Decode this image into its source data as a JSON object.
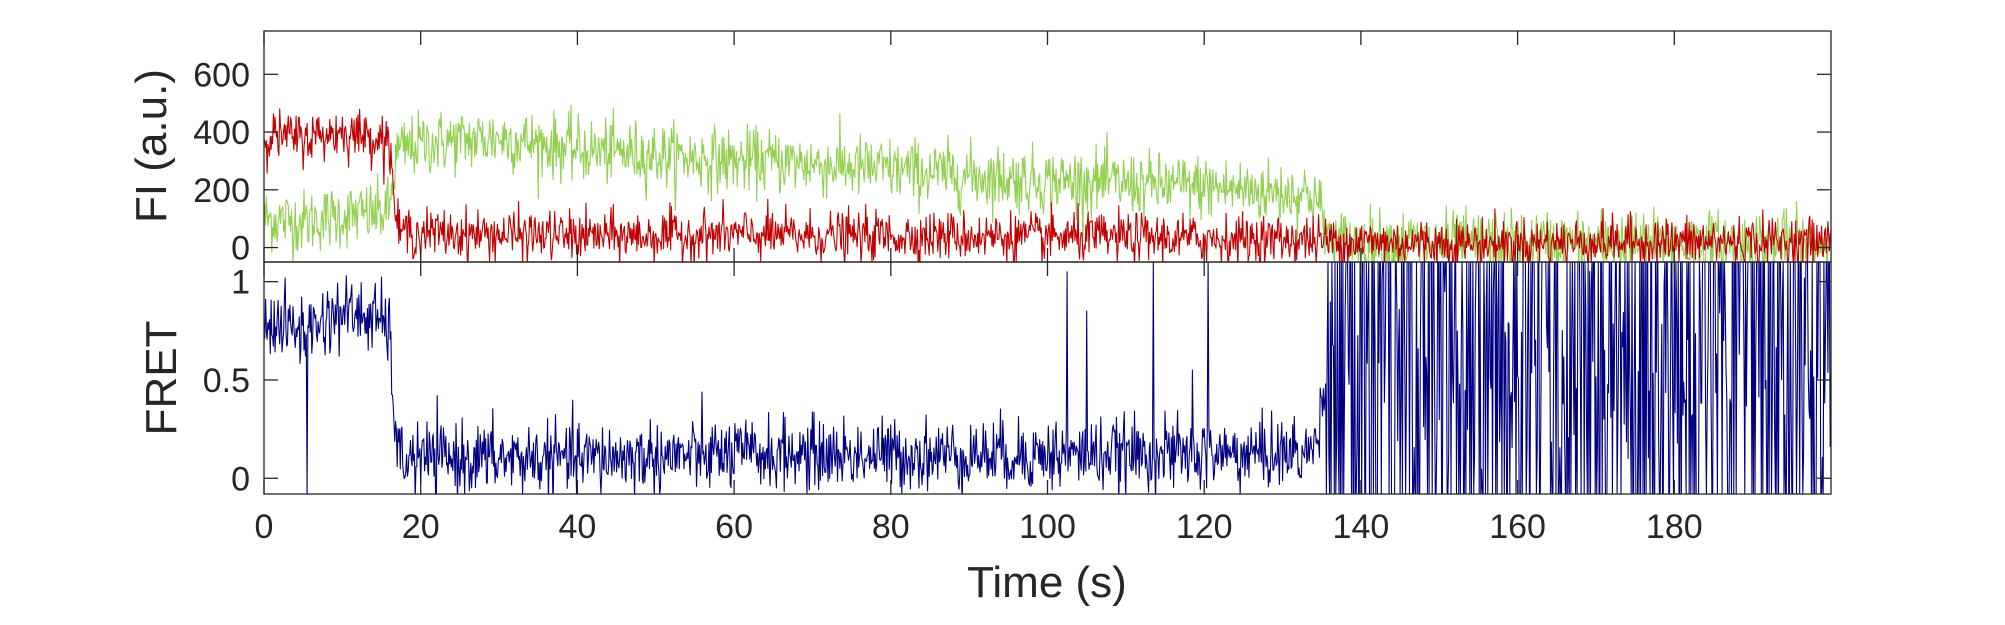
{
  "chart_data": [
    {
      "type": "line",
      "panel": "top",
      "title": "",
      "xlabel": "",
      "ylabel": "FI (a.u.)",
      "xlim": [
        0,
        200
      ],
      "ylim": [
        -50,
        750
      ],
      "yticks": [
        0,
        200,
        400,
        600
      ],
      "ytick_labels": [
        "0",
        "200",
        "400",
        "600"
      ],
      "grid": false,
      "legend": "none",
      "series": [
        {
          "color": "#92d050",
          "x": [
            0,
            5,
            10,
            15,
            16,
            17,
            20,
            25,
            30,
            35,
            40,
            45,
            50,
            55,
            60,
            65,
            70,
            75,
            80,
            85,
            90,
            95,
            100,
            105,
            110,
            115,
            120,
            125,
            130,
            134,
            135,
            136,
            140,
            150,
            160,
            170,
            180,
            190,
            200
          ],
          "y": [
            100,
            90,
            110,
            120,
            130,
            330,
            360,
            370,
            380,
            360,
            340,
            330,
            320,
            310,
            300,
            300,
            290,
            280,
            270,
            260,
            250,
            240,
            230,
            230,
            220,
            215,
            210,
            200,
            190,
            185,
            120,
            20,
            20,
            15,
            15,
            15,
            15,
            15,
            15
          ],
          "noise": 55
        },
        {
          "color": "#c00000",
          "x": [
            0,
            5,
            10,
            15,
            16,
            17,
            20,
            30,
            40,
            50,
            60,
            70,
            80,
            90,
            100,
            110,
            120,
            130,
            135,
            140,
            150,
            160,
            170,
            180,
            190,
            200
          ],
          "y": [
            390,
            380,
            400,
            380,
            370,
            60,
            50,
            45,
            40,
            40,
            45,
            40,
            40,
            40,
            35,
            35,
            30,
            30,
            25,
            20,
            15,
            15,
            20,
            20,
            20,
            20
          ],
          "noise": 42
        }
      ]
    },
    {
      "type": "line",
      "panel": "bottom",
      "title": "",
      "xlabel": "Time (s)",
      "ylabel": "FRET",
      "xlim": [
        0,
        200
      ],
      "ylim": [
        -0.08,
        1.1
      ],
      "yticks": [
        0,
        0.5,
        1
      ],
      "ytick_labels": [
        "0",
        "0.5",
        "1"
      ],
      "xticks": [
        0,
        20,
        40,
        60,
        80,
        100,
        120,
        140,
        160,
        180
      ],
      "xtick_labels": [
        "0",
        "20",
        "40",
        "60",
        "80",
        "100",
        "120",
        "140",
        "160",
        "180"
      ],
      "grid": false,
      "legend": "none",
      "series": [
        {
          "color": "#000080",
          "x": [
            0,
            5,
            10,
            15,
            16,
            17,
            20,
            40,
            60,
            80,
            100,
            120,
            134,
            135,
            136,
            140,
            160,
            180,
            200
          ],
          "y": [
            0.8,
            0.75,
            0.85,
            0.8,
            0.75,
            0.1,
            0.1,
            0.1,
            0.12,
            0.12,
            0.12,
            0.12,
            0.13,
            0.4,
            0.55,
            0.55,
            0.55,
            0.55,
            0.55
          ],
          "noise": 0.09,
          "spikes": [
            {
              "x": 5.5,
              "y": -0.08
            },
            {
              "x": 102.5,
              "y": 1.05
            },
            {
              "x": 105,
              "y": 0.85
            },
            {
              "x": 113.5,
              "y": 1.1
            },
            {
              "x": 118.5,
              "y": 0.55
            },
            {
              "x": 120.5,
              "y": 1.1
            }
          ]
        }
      ]
    }
  ]
}
